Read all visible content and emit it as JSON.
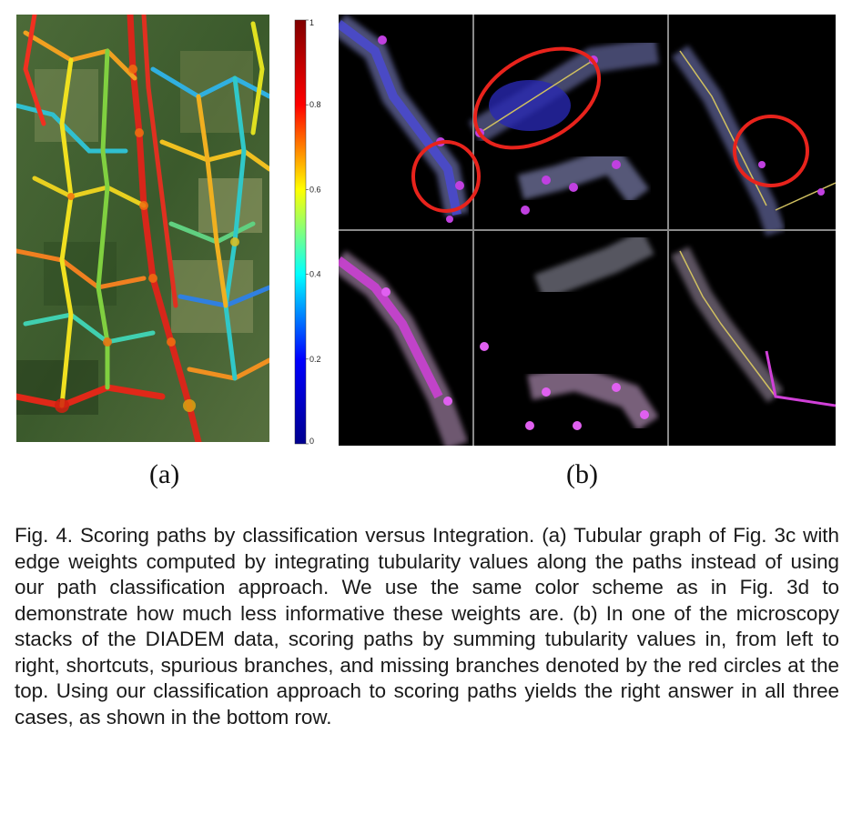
{
  "figure": {
    "panel_a_label": "(a)",
    "panel_b_label": "(b)",
    "colorbar": {
      "ticks": [
        "1",
        "0.8",
        "0.6",
        "0.4",
        "0.2",
        "0"
      ],
      "tick_values": [
        1,
        0.8,
        0.6,
        0.4,
        0.2,
        0
      ],
      "colormap": "jet",
      "colors": [
        "#00008f",
        "#0000ff",
        "#00ffff",
        "#ffff00",
        "#ff0000",
        "#800000"
      ]
    },
    "panel_b": {
      "top_row_color": "#3b3fd0",
      "bottom_row_color": "#d040d8",
      "circle_color": "#e8231c"
    }
  },
  "caption": {
    "lines": [
      "Fig. 4. Scoring paths by classification versus Integration. (a) Tubular",
      "graph of Fig. 3c with edge weights computed by integrating tubularity",
      "values along the paths instead of using our path classification approach.",
      "We use the same color scheme as in Fig. 3d to demonstrate how much",
      "less informative these weights are. (b) In one of the microscopy stacks",
      "of the DIADEM data, scoring paths by summing tubularity values in,",
      "from left to right, shortcuts, spurious branches, and missing branches",
      "denoted by the red circles at the top. Using our classification approach",
      "to scoring paths yields the right answer in all three cases, as shown in",
      "the bottom row."
    ]
  }
}
